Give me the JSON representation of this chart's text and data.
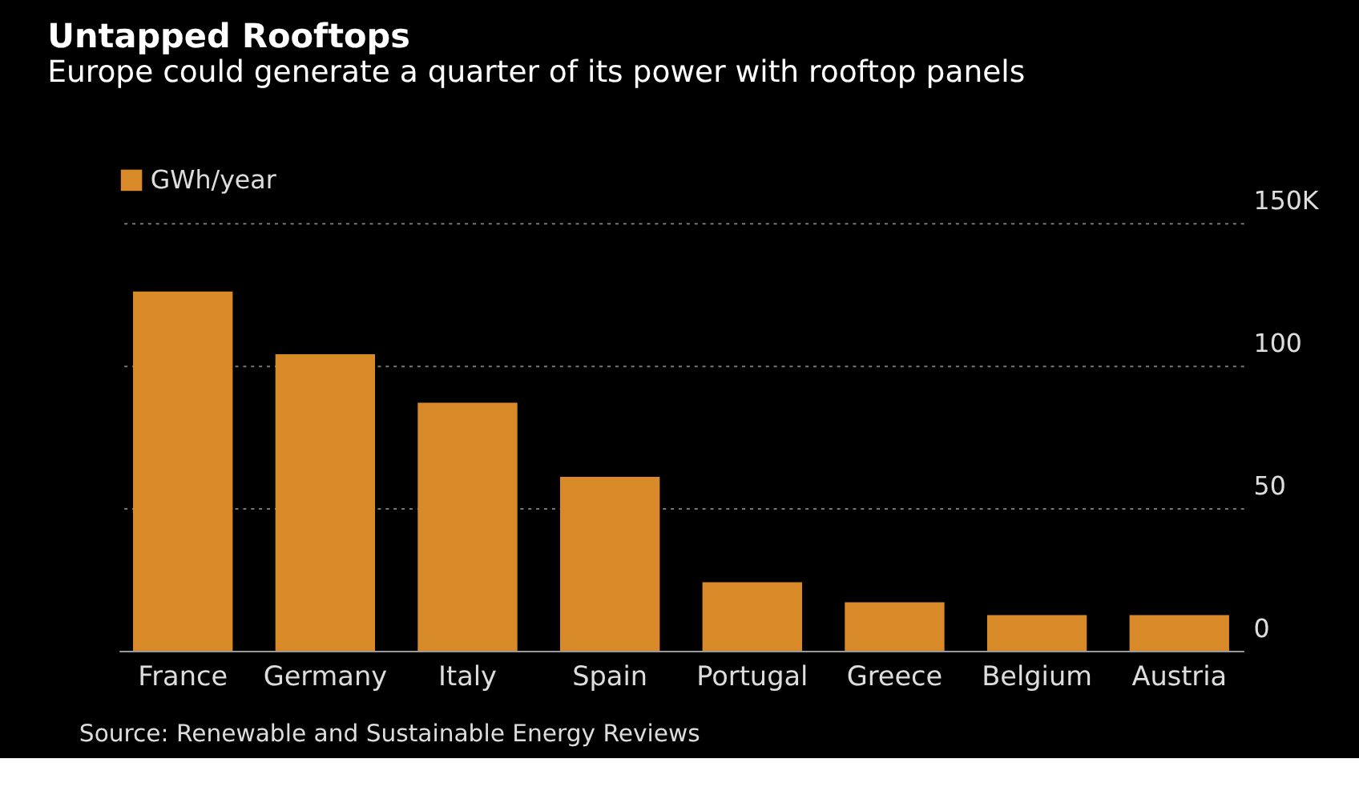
{
  "chart_data": {
    "type": "bar",
    "title": "Untapped Rooftops",
    "subtitle": "Europe could generate a quarter of its power with rooftop panels",
    "categories": [
      "France",
      "Germany",
      "Italy",
      "Spain",
      "Portugal",
      "Greece",
      "Belgium",
      "Austria"
    ],
    "series": [
      {
        "name": "GWh/year",
        "color": "#d98a28",
        "values": [
          126,
          104,
          87,
          61,
          24,
          17,
          12.5,
          12.5
        ]
      }
    ],
    "ylim": [
      0,
      150
    ],
    "yticks": [
      0,
      50,
      100,
      {
        "value": 150,
        "label": "150K"
      }
    ],
    "grid": "y",
    "legend": "top left",
    "annotations": [
      "Source: Renewable and Sustainable Energy Reviews"
    ]
  }
}
